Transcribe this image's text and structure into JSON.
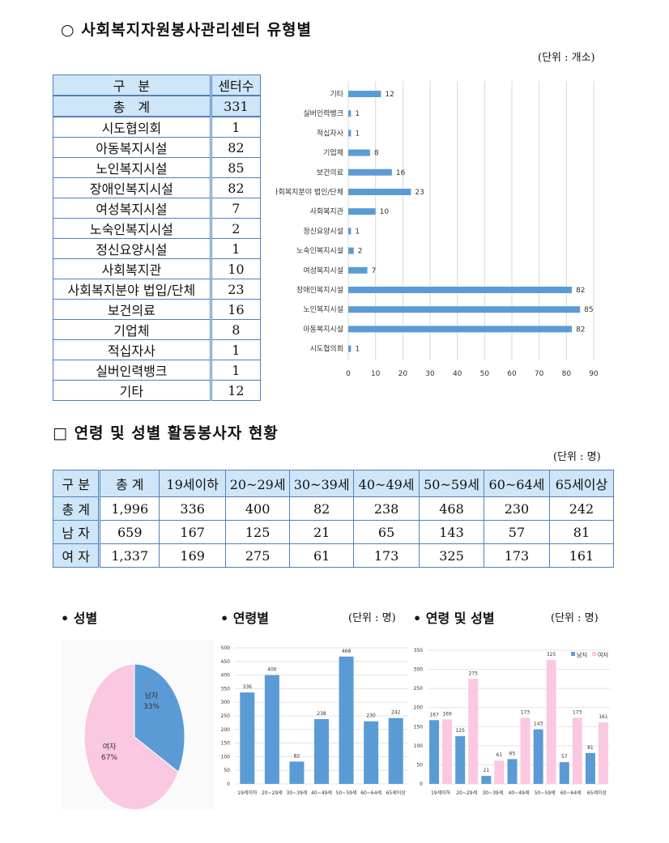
{
  "section1": {
    "title": "○ 사회복지자원봉사관리센터 유형별",
    "unit": "(단위 : 개소)",
    "table": {
      "headers": [
        "구　분",
        "센터수"
      ],
      "rows": [
        [
          "총　계",
          "331"
        ],
        [
          "시도협의회",
          "1"
        ],
        [
          "아동복지시설",
          "82"
        ],
        [
          "노인복지시설",
          "85"
        ],
        [
          "장애인복지시설",
          "82"
        ],
        [
          "여성복지시설",
          "7"
        ],
        [
          "노숙인복지시설",
          "2"
        ],
        [
          "정신요양시설",
          "1"
        ],
        [
          "사회복지관",
          "10"
        ],
        [
          "사회복지분야 법입/단체",
          "23"
        ],
        [
          "보건의료",
          "16"
        ],
        [
          "기업체",
          "8"
        ],
        [
          "적십자사",
          "1"
        ],
        [
          "실버인력뱅크",
          "1"
        ],
        [
          "기타",
          "12"
        ]
      ]
    }
  },
  "section2": {
    "title": "□ 연령 및 성별 활동봉사자 현황",
    "unit": "(단위 : 명)",
    "table": {
      "headers": [
        "구 분",
        "총 계",
        "19세이하",
        "20~29세",
        "30~39세",
        "40~49세",
        "50~59세",
        "60~64세",
        "65세이상"
      ],
      "rows": [
        [
          "총 계",
          "1,996",
          "336",
          "400",
          "82",
          "238",
          "468",
          "230",
          "242"
        ],
        [
          "남 자",
          "659",
          "167",
          "125",
          "21",
          "65",
          "143",
          "57",
          "81"
        ],
        [
          "여 자",
          "1,337",
          "169",
          "275",
          "61",
          "173",
          "325",
          "173",
          "161"
        ]
      ]
    }
  },
  "bottom": {
    "gender_heading": "• 성별",
    "age_heading": "• 연령별",
    "age_unit": "(단위 : 명)",
    "age_gender_heading": "• 연령 및 성별",
    "age_gender_unit": "(단위 : 명)"
  },
  "colors": {
    "blue": "#5b9bd5",
    "pink": "#fbc8e1",
    "header_bg": "#cfe6f8"
  },
  "chart_data": [
    {
      "type": "bar",
      "orientation": "horizontal",
      "categories": [
        "기타",
        "실버인력뱅크",
        "적십자사",
        "기업체",
        "보건의료",
        "사회복지분야 법인/단체",
        "사회복지관",
        "정신요양시설",
        "노숙인복지시설",
        "여성복지시설",
        "장애인복지시설",
        "노인복지시설",
        "아동복지시설",
        "시도협의회"
      ],
      "values": [
        12,
        1,
        1,
        8,
        16,
        23,
        10,
        1,
        2,
        7,
        82,
        85,
        82,
        1
      ],
      "xlim": [
        0,
        90
      ],
      "xticks": [
        0,
        10,
        20,
        30,
        40,
        50,
        60,
        70,
        80,
        90
      ],
      "grid": true
    },
    {
      "type": "pie",
      "labels": [
        "남자",
        "여자"
      ],
      "values": [
        33,
        67
      ],
      "value_labels": [
        "33%",
        "67%"
      ]
    },
    {
      "type": "bar",
      "categories": [
        "19세이하",
        "20~29세",
        "30~39세",
        "40~49세",
        "50~59세",
        "60~64세",
        "65세이상"
      ],
      "values": [
        336,
        400,
        82,
        238,
        468,
        230,
        242
      ],
      "ylim": [
        0,
        500
      ],
      "yticks": [
        0,
        50,
        100,
        150,
        200,
        250,
        300,
        350,
        400,
        450,
        500
      ],
      "grid": true
    },
    {
      "type": "bar",
      "categories": [
        "19세이하",
        "20~29세",
        "30~39세",
        "40~49세",
        "50~59세",
        "60~64세",
        "65세이상"
      ],
      "series": [
        {
          "name": "남자",
          "values": [
            167,
            125,
            21,
            65,
            143,
            57,
            81
          ]
        },
        {
          "name": "여자",
          "values": [
            169,
            275,
            61,
            173,
            325,
            173,
            161
          ]
        }
      ],
      "ylim": [
        0,
        350
      ],
      "yticks": [
        0,
        50,
        100,
        150,
        200,
        250,
        300,
        350
      ],
      "grid": true,
      "legend": "top-right"
    }
  ]
}
